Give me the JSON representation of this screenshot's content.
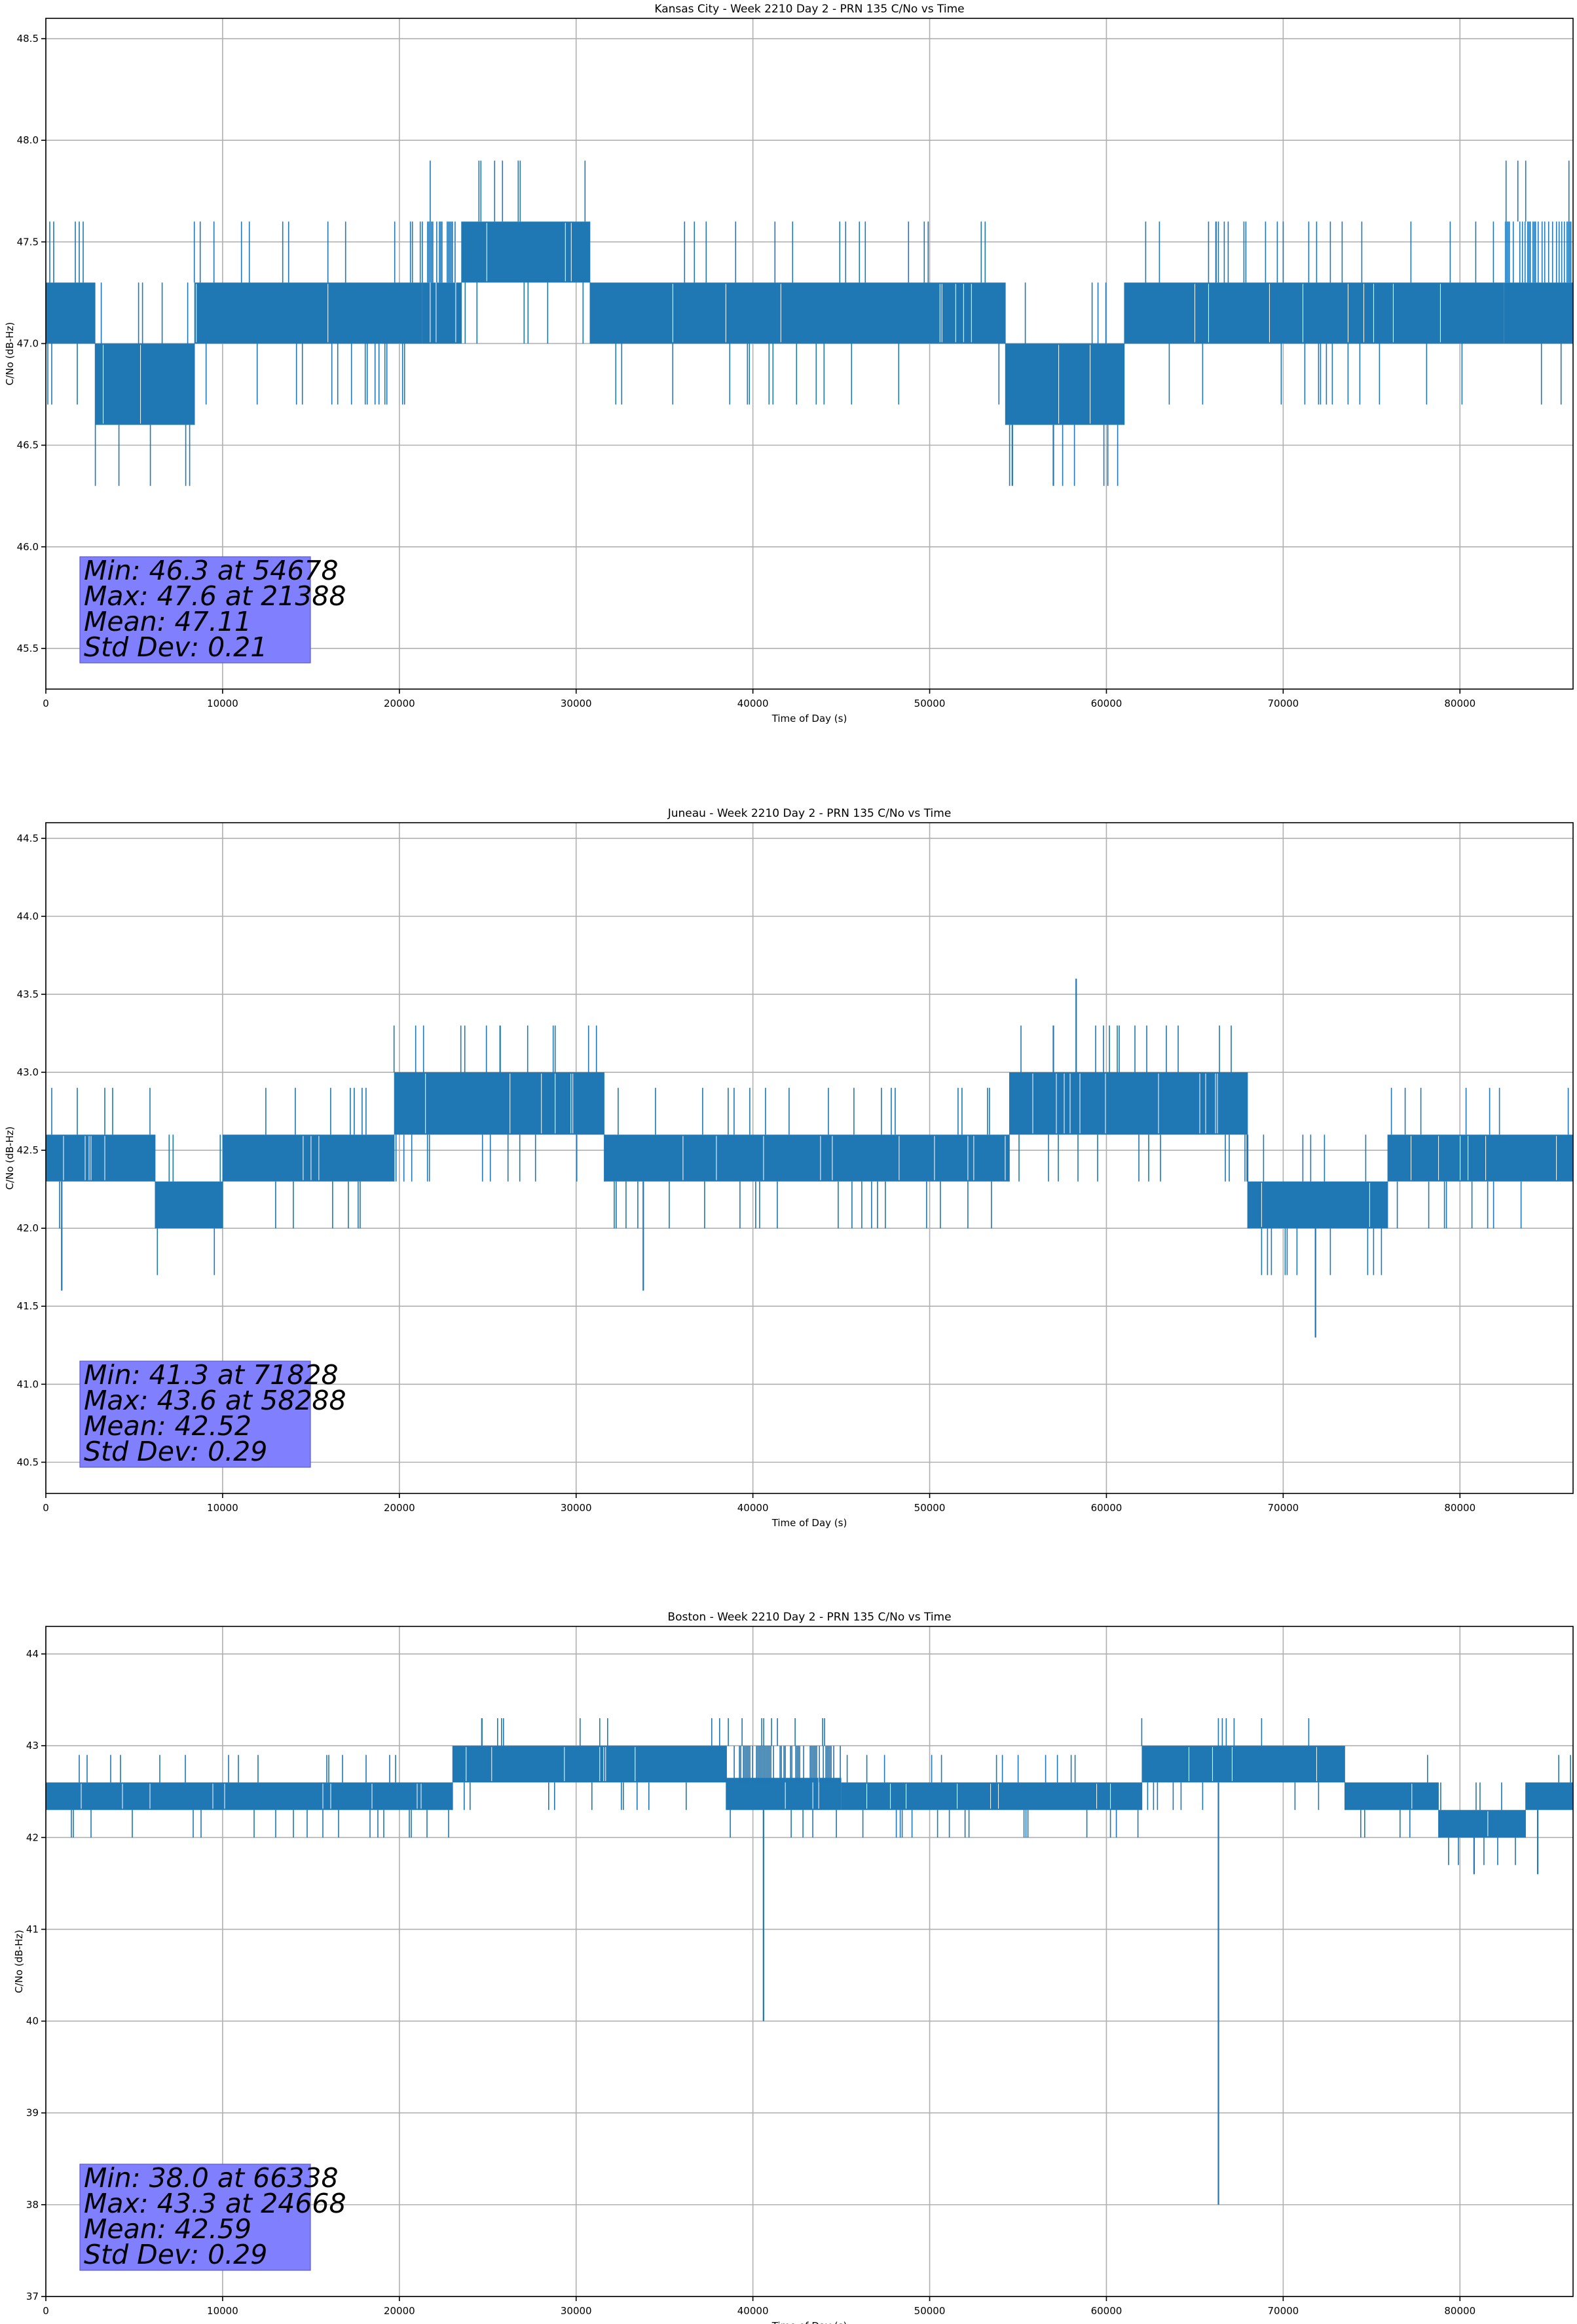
{
  "figure": {
    "line_color": "#1f77b4",
    "stats_box_color": "#8080ff",
    "grid": true
  },
  "chart_data": [
    {
      "type": "line",
      "title": "Kansas City - Week 2210 Day 2 - PRN 135 C/No vs Time",
      "xlabel": "Time of Day (s)",
      "ylabel": "C/No (dB-Hz)",
      "xlim": [
        0,
        86400
      ],
      "ylim": [
        45.3,
        48.6
      ],
      "xticks": [
        0,
        10000,
        20000,
        30000,
        40000,
        50000,
        60000,
        70000,
        80000
      ],
      "yticks": [
        45.5,
        46.0,
        46.5,
        47.0,
        47.5,
        48.0,
        48.5
      ],
      "ytick_decimals": 1,
      "quantum": 0.3,
      "base_segments": [
        {
          "x": [
            0,
            2800
          ],
          "levels": [
            47.0,
            47.3
          ]
        },
        {
          "x": [
            2800,
            8400
          ],
          "levels": [
            46.6,
            47.0
          ]
        },
        {
          "x": [
            8400,
            21300
          ],
          "levels": [
            47.0,
            47.3
          ]
        },
        {
          "x": [
            21300,
            23500
          ],
          "levels": [
            47.0,
            47.3,
            47.6
          ]
        },
        {
          "x": [
            23500,
            30800
          ],
          "levels": [
            47.3,
            47.6
          ]
        },
        {
          "x": [
            30800,
            54300
          ],
          "levels": [
            47.0,
            47.3
          ]
        },
        {
          "x": [
            54300,
            61000
          ],
          "levels": [
            46.6,
            47.0
          ]
        },
        {
          "x": [
            61000,
            82500
          ],
          "levels": [
            47.0,
            47.3
          ]
        },
        {
          "x": [
            82500,
            86400
          ],
          "levels": [
            47.0,
            47.3,
            47.6
          ]
        }
      ],
      "spikes": [
        {
          "x": 54678,
          "y": 46.3
        },
        {
          "x": 57000,
          "y": 46.3
        },
        {
          "x": 66200,
          "y": 47.6
        },
        {
          "x": 21388,
          "y": 47.6
        }
      ],
      "stats": {
        "min": "Min: 46.3 at 54678",
        "max": "Max: 47.6 at 21388",
        "mean": "Mean: 47.11",
        "std": "Std Dev: 0.21"
      }
    },
    {
      "type": "line",
      "title": "Juneau - Week 2210 Day 2 - PRN 135 C/No vs Time",
      "xlabel": "Time of Day (s)",
      "ylabel": "C/No (dB-Hz)",
      "xlim": [
        0,
        86400
      ],
      "ylim": [
        40.3,
        44.6
      ],
      "xticks": [
        0,
        10000,
        20000,
        30000,
        40000,
        50000,
        60000,
        70000,
        80000
      ],
      "yticks": [
        40.5,
        41.0,
        41.5,
        42.0,
        42.5,
        43.0,
        43.5,
        44.0,
        44.5
      ],
      "ytick_decimals": 1,
      "quantum": 0.3,
      "base_segments": [
        {
          "x": [
            0,
            6200
          ],
          "levels": [
            42.3,
            42.6
          ]
        },
        {
          "x": [
            6200,
            10000
          ],
          "levels": [
            42.0,
            42.3
          ]
        },
        {
          "x": [
            10000,
            19700
          ],
          "levels": [
            42.3,
            42.6
          ]
        },
        {
          "x": [
            19700,
            31600
          ],
          "levels": [
            42.6,
            43.0
          ]
        },
        {
          "x": [
            31600,
            54500
          ],
          "levels": [
            42.3,
            42.6
          ]
        },
        {
          "x": [
            54500,
            68000
          ],
          "levels": [
            42.6,
            43.0
          ]
        },
        {
          "x": [
            68000,
            75900
          ],
          "levels": [
            42.0,
            42.3
          ]
        },
        {
          "x": [
            75900,
            86400
          ],
          "levels": [
            42.3,
            42.6
          ]
        }
      ],
      "spikes": [
        {
          "x": 58288,
          "y": 43.6
        },
        {
          "x": 71828,
          "y": 41.3
        },
        {
          "x": 33800,
          "y": 41.6
        },
        {
          "x": 900,
          "y": 41.6
        },
        {
          "x": 25700,
          "y": 43.3
        },
        {
          "x": 57000,
          "y": 43.3
        }
      ],
      "stats": {
        "min": "Min: 41.3 at 71828",
        "max": "Max: 43.6 at 58288",
        "mean": "Mean: 42.52",
        "std": "Std Dev: 0.29"
      }
    },
    {
      "type": "line",
      "title": "Boston - Week 2210 Day 2 - PRN 135 C/No vs Time",
      "xlabel": "Time of Day (s)",
      "ylabel": "C/No (dB-Hz)",
      "xlim": [
        0,
        86400
      ],
      "ylim": [
        37,
        44.3
      ],
      "xticks": [
        0,
        10000,
        20000,
        30000,
        40000,
        50000,
        60000,
        70000,
        80000
      ],
      "yticks": [
        37,
        38,
        39,
        40,
        41,
        42,
        43,
        44
      ],
      "ytick_decimals": 0,
      "quantum": 0.3,
      "base_segments": [
        {
          "x": [
            0,
            23000
          ],
          "levels": [
            42.3,
            42.6
          ]
        },
        {
          "x": [
            23000,
            38500
          ],
          "levels": [
            42.6,
            43.0
          ]
        },
        {
          "x": [
            38500,
            45000
          ],
          "levels": [
            42.3,
            42.6,
            43.0
          ]
        },
        {
          "x": [
            45000,
            62000
          ],
          "levels": [
            42.3,
            42.6
          ]
        },
        {
          "x": [
            62000,
            73500
          ],
          "levels": [
            42.6,
            43.0
          ]
        },
        {
          "x": [
            73500,
            78800
          ],
          "levels": [
            42.3,
            42.6
          ]
        },
        {
          "x": [
            78800,
            83700
          ],
          "levels": [
            42.0,
            42.3
          ]
        },
        {
          "x": [
            83700,
            86400
          ],
          "levels": [
            42.3,
            42.6
          ]
        }
      ],
      "spikes": [
        {
          "x": 66338,
          "y": 38.0
        },
        {
          "x": 40600,
          "y": 40.0
        },
        {
          "x": 24668,
          "y": 43.3
        },
        {
          "x": 80800,
          "y": 41.6
        },
        {
          "x": 84400,
          "y": 41.6
        }
      ],
      "stats": {
        "min": "Min: 38.0 at 66338",
        "max": "Max: 43.3 at 24668",
        "mean": "Mean: 42.59",
        "std": "Std Dev: 0.29"
      }
    }
  ]
}
